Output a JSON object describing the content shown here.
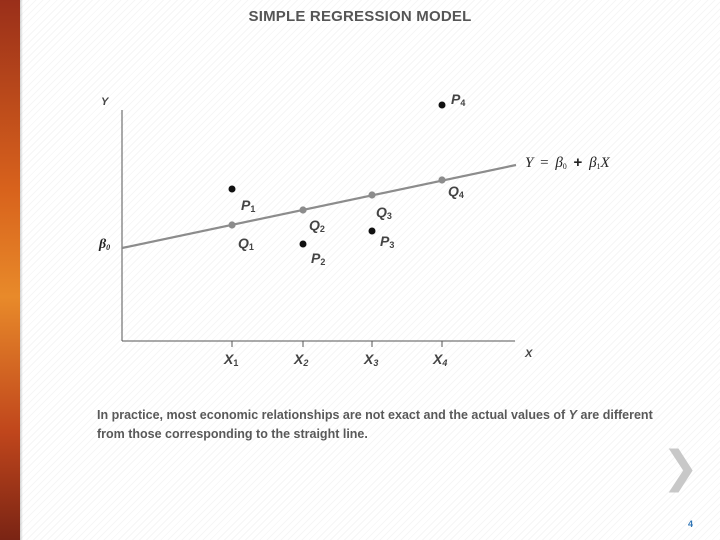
{
  "title": "SIMPLE REGRESSION MODEL",
  "axes": {
    "y_label": "Y",
    "x_label": "X"
  },
  "intercept_label": {
    "symbol": "β",
    "sub": "0"
  },
  "equation": {
    "lhs": "Y",
    "equals": "=",
    "b0": "β",
    "b0_sub": "0",
    "plus": "+",
    "b1": "β",
    "b1_sub": "1",
    "var": "X"
  },
  "x_ticks": [
    {
      "main": "X",
      "sub": "1"
    },
    {
      "main": "X",
      "sub": "2"
    },
    {
      "main": "X",
      "sub": "3"
    },
    {
      "main": "X",
      "sub": "4"
    }
  ],
  "fitted_points": [
    {
      "main": "Q",
      "sub": "1"
    },
    {
      "main": "Q",
      "sub": "2"
    },
    {
      "main": "Q",
      "sub": "3"
    },
    {
      "main": "Q",
      "sub": "4"
    }
  ],
  "observed_points": [
    {
      "main": "P",
      "sub": "1"
    },
    {
      "main": "P",
      "sub": "2"
    },
    {
      "main": "P",
      "sub": "3"
    },
    {
      "main": "P",
      "sub": "4"
    }
  ],
  "caption": {
    "text_before": "In practice, most economic relationships are not exact and the actual values of ",
    "variable": "Y",
    "text_after": " are different from those corresponding to the straight line."
  },
  "nav": {
    "next_symbol": "❯"
  },
  "page_number": "4",
  "colors": {
    "line": "#8c8c8c",
    "points": "#111111",
    "text": "#444444",
    "accent": "#d8621c"
  }
}
